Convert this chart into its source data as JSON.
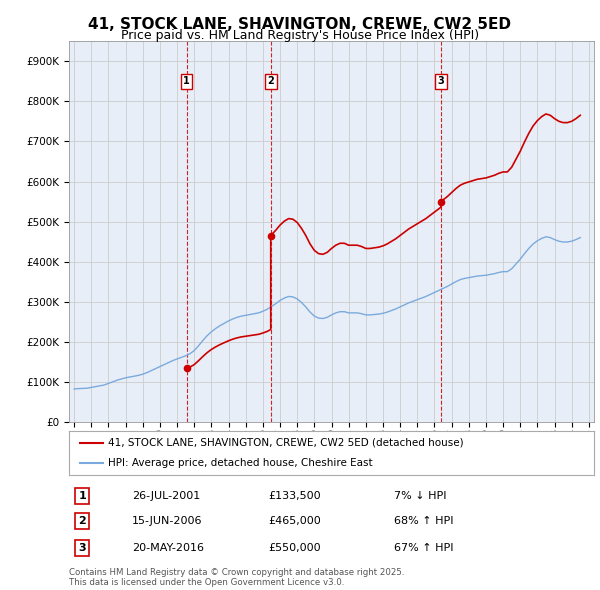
{
  "title": "41, STOCK LANE, SHAVINGTON, CREWE, CW2 5ED",
  "subtitle": "Price paid vs. HM Land Registry's House Price Index (HPI)",
  "title_fontsize": 11,
  "subtitle_fontsize": 9,
  "bg_color": "#ffffff",
  "grid_color": "#cccccc",
  "plot_bg": "#e8eef8",
  "hpi_color": "#7aaadd",
  "price_color": "#cc0000",
  "ylim": [
    0,
    950000
  ],
  "yticks": [
    0,
    100000,
    200000,
    300000,
    400000,
    500000,
    600000,
    700000,
    800000,
    900000
  ],
  "ytick_labels": [
    "£0",
    "£100K",
    "£200K",
    "£300K",
    "£400K",
    "£500K",
    "£600K",
    "£700K",
    "£800K",
    "£900K"
  ],
  "transactions": [
    {
      "label": "1",
      "date_num": 2001.558,
      "price": 133500,
      "pct": "7% ↓ HPI",
      "date_str": "26-JUL-2001"
    },
    {
      "label": "2",
      "date_num": 2006.458,
      "price": 465000,
      "pct": "68% ↑ HPI",
      "date_str": "15-JUN-2006"
    },
    {
      "label": "3",
      "date_num": 2016.379,
      "price": 550000,
      "pct": "67% ↑ HPI",
      "date_str": "20-MAY-2016"
    }
  ],
  "legend_entries": [
    "41, STOCK LANE, SHAVINGTON, CREWE, CW2 5ED (detached house)",
    "HPI: Average price, detached house, Cheshire East"
  ],
  "footer": "Contains HM Land Registry data © Crown copyright and database right 2025.\nThis data is licensed under the Open Government Licence v3.0.",
  "hpi_data": [
    [
      1995.0,
      82000
    ],
    [
      1995.25,
      83000
    ],
    [
      1995.5,
      83500
    ],
    [
      1995.75,
      84000
    ],
    [
      1996.0,
      86000
    ],
    [
      1996.25,
      88000
    ],
    [
      1996.5,
      90000
    ],
    [
      1996.75,
      92000
    ],
    [
      1997.0,
      96000
    ],
    [
      1997.25,
      100000
    ],
    [
      1997.5,
      104000
    ],
    [
      1997.75,
      107000
    ],
    [
      1998.0,
      110000
    ],
    [
      1998.25,
      112000
    ],
    [
      1998.5,
      114000
    ],
    [
      1998.75,
      116000
    ],
    [
      1999.0,
      119000
    ],
    [
      1999.25,
      123000
    ],
    [
      1999.5,
      128000
    ],
    [
      1999.75,
      133000
    ],
    [
      2000.0,
      138000
    ],
    [
      2000.25,
      143000
    ],
    [
      2000.5,
      148000
    ],
    [
      2000.75,
      153000
    ],
    [
      2001.0,
      157000
    ],
    [
      2001.25,
      161000
    ],
    [
      2001.5,
      165000
    ],
    [
      2001.75,
      170000
    ],
    [
      2002.0,
      178000
    ],
    [
      2002.25,
      190000
    ],
    [
      2002.5,
      203000
    ],
    [
      2002.75,
      215000
    ],
    [
      2003.0,
      225000
    ],
    [
      2003.25,
      233000
    ],
    [
      2003.5,
      240000
    ],
    [
      2003.75,
      246000
    ],
    [
      2004.0,
      252000
    ],
    [
      2004.25,
      257000
    ],
    [
      2004.5,
      261000
    ],
    [
      2004.75,
      264000
    ],
    [
      2005.0,
      266000
    ],
    [
      2005.25,
      268000
    ],
    [
      2005.5,
      270000
    ],
    [
      2005.75,
      272000
    ],
    [
      2006.0,
      276000
    ],
    [
      2006.25,
      281000
    ],
    [
      2006.5,
      288000
    ],
    [
      2006.75,
      295000
    ],
    [
      2007.0,
      303000
    ],
    [
      2007.25,
      309000
    ],
    [
      2007.5,
      313000
    ],
    [
      2007.75,
      312000
    ],
    [
      2008.0,
      307000
    ],
    [
      2008.25,
      298000
    ],
    [
      2008.5,
      287000
    ],
    [
      2008.75,
      274000
    ],
    [
      2009.0,
      264000
    ],
    [
      2009.25,
      259000
    ],
    [
      2009.5,
      258000
    ],
    [
      2009.75,
      261000
    ],
    [
      2010.0,
      267000
    ],
    [
      2010.25,
      272000
    ],
    [
      2010.5,
      275000
    ],
    [
      2010.75,
      275000
    ],
    [
      2011.0,
      272000
    ],
    [
      2011.25,
      272000
    ],
    [
      2011.5,
      272000
    ],
    [
      2011.75,
      270000
    ],
    [
      2012.0,
      267000
    ],
    [
      2012.25,
      267000
    ],
    [
      2012.5,
      268000
    ],
    [
      2012.75,
      269000
    ],
    [
      2013.0,
      271000
    ],
    [
      2013.25,
      274000
    ],
    [
      2013.5,
      278000
    ],
    [
      2013.75,
      282000
    ],
    [
      2014.0,
      287000
    ],
    [
      2014.25,
      292000
    ],
    [
      2014.5,
      297000
    ],
    [
      2014.75,
      301000
    ],
    [
      2015.0,
      305000
    ],
    [
      2015.25,
      309000
    ],
    [
      2015.5,
      313000
    ],
    [
      2015.75,
      318000
    ],
    [
      2016.0,
      323000
    ],
    [
      2016.25,
      328000
    ],
    [
      2016.5,
      333000
    ],
    [
      2016.75,
      338000
    ],
    [
      2017.0,
      344000
    ],
    [
      2017.25,
      350000
    ],
    [
      2017.5,
      355000
    ],
    [
      2017.75,
      358000
    ],
    [
      2018.0,
      360000
    ],
    [
      2018.25,
      362000
    ],
    [
      2018.5,
      364000
    ],
    [
      2018.75,
      365000
    ],
    [
      2019.0,
      366000
    ],
    [
      2019.25,
      368000
    ],
    [
      2019.5,
      370000
    ],
    [
      2019.75,
      373000
    ],
    [
      2020.0,
      375000
    ],
    [
      2020.25,
      375000
    ],
    [
      2020.5,
      382000
    ],
    [
      2020.75,
      394000
    ],
    [
      2021.0,
      406000
    ],
    [
      2021.25,
      420000
    ],
    [
      2021.5,
      433000
    ],
    [
      2021.75,
      444000
    ],
    [
      2022.0,
      452000
    ],
    [
      2022.25,
      458000
    ],
    [
      2022.5,
      462000
    ],
    [
      2022.75,
      460000
    ],
    [
      2023.0,
      455000
    ],
    [
      2023.25,
      451000
    ],
    [
      2023.5,
      449000
    ],
    [
      2023.75,
      449000
    ],
    [
      2024.0,
      451000
    ],
    [
      2024.25,
      455000
    ],
    [
      2024.5,
      460000
    ]
  ]
}
